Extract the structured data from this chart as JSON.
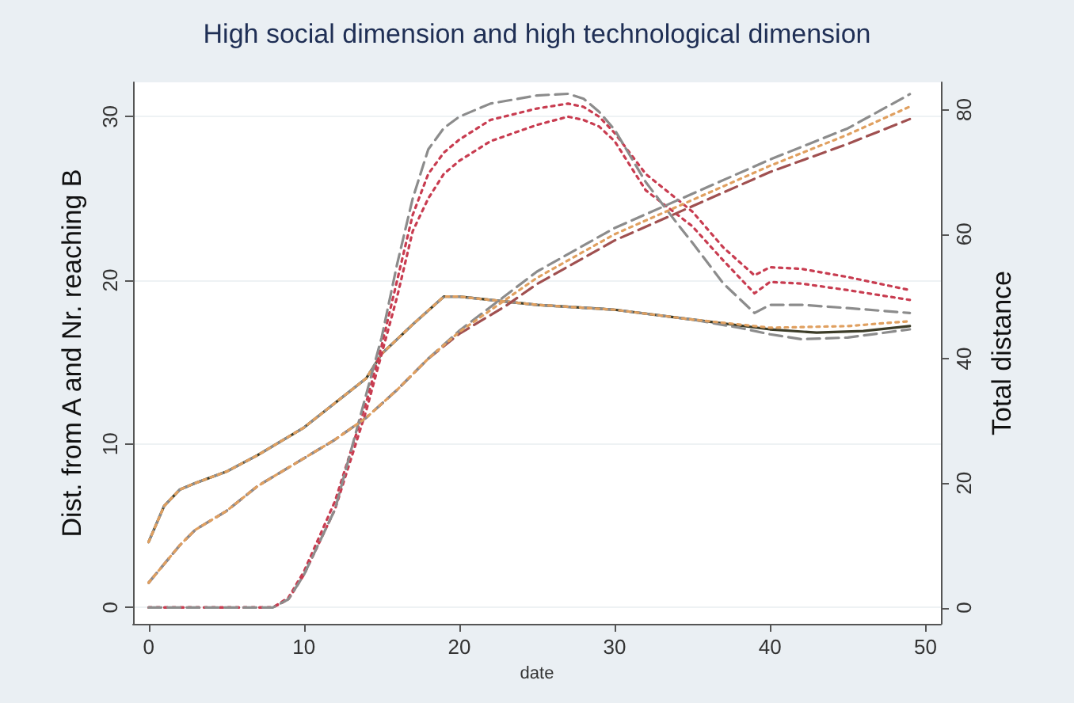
{
  "chart_data": {
    "type": "line",
    "title": "High social dimension and high technological dimension",
    "xlabel": "date",
    "ylabel": "Dist. from A and Nr. reaching B",
    "y2label": "Total distance",
    "xlim": [
      -1,
      51
    ],
    "xticks": [
      0,
      10,
      20,
      30,
      40,
      50
    ],
    "ylim": [
      -1,
      32.1
    ],
    "yticks": [
      0,
      10,
      20,
      30
    ],
    "y2lim": [
      -2.6,
      84.4
    ],
    "y2ticks": [
      0,
      20,
      40,
      60,
      80
    ],
    "grid": "y",
    "marker": "none",
    "series": [
      {
        "color": "#3c3c28",
        "line_style": "solid",
        "x": [
          0,
          1,
          2,
          3,
          5,
          7,
          10,
          12,
          14,
          15,
          17,
          19,
          20,
          25,
          30,
          35,
          40,
          43,
          46,
          49
        ],
        "values": [
          4,
          6.2,
          7.2,
          7.6,
          8.3,
          9.3,
          11,
          12.5,
          14,
          15.5,
          17.3,
          19,
          19,
          18.5,
          18.2,
          17.6,
          17,
          16.8,
          16.9,
          17.2
        ]
      },
      {
        "color": "#8c8c8c",
        "line_style": "dashed",
        "x": [
          0,
          1,
          2,
          3,
          5,
          7,
          10,
          12,
          14,
          15,
          17,
          19,
          20,
          25,
          30,
          35,
          38,
          40,
          42,
          45,
          49
        ],
        "values": [
          4,
          6.2,
          7.2,
          7.6,
          8.3,
          9.3,
          11,
          12.5,
          14,
          15.5,
          17.3,
          19,
          19,
          18.5,
          18.2,
          17.6,
          17.1,
          16.7,
          16.4,
          16.5,
          17
        ]
      },
      {
        "color": "#e0a060",
        "line_style": "dotted",
        "x": [
          0,
          1,
          2,
          3,
          5,
          7,
          10,
          12,
          14,
          15,
          17,
          19,
          20,
          25,
          30,
          35,
          40,
          45,
          49
        ],
        "values": [
          4,
          6.2,
          7.2,
          7.6,
          8.3,
          9.3,
          11,
          12.5,
          14,
          15.5,
          17.3,
          19,
          19,
          18.5,
          18.2,
          17.6,
          17.1,
          17.2,
          17.5
        ]
      },
      {
        "color": "#c83c50",
        "line_style": "dotted",
        "x": [
          0,
          8,
          9,
          10,
          12,
          14,
          15,
          16,
          17,
          18,
          19,
          20,
          22,
          25,
          27,
          28,
          29,
          30,
          32,
          35,
          37,
          39,
          40,
          42,
          45,
          49
        ],
        "values": [
          0,
          0,
          0.6,
          2.2,
          6.5,
          12.5,
          16,
          20,
          24,
          26.5,
          27.8,
          28.6,
          29.8,
          30.5,
          30.8,
          30.6,
          30,
          29,
          26.5,
          24.2,
          22,
          20.3,
          20.8,
          20.7,
          20.2,
          19.4
        ]
      },
      {
        "color": "#c83c50",
        "line_style": "dotted",
        "x": [
          0,
          8,
          9,
          10,
          12,
          14,
          15,
          16,
          17,
          18,
          19,
          20,
          22,
          25,
          27,
          28,
          29,
          30,
          32,
          35,
          37,
          39,
          40,
          42,
          45,
          49
        ],
        "values": [
          0,
          0,
          0.5,
          2,
          6,
          12,
          15.5,
          19,
          23,
          25,
          26.5,
          27.3,
          28.5,
          29.5,
          30,
          29.8,
          29.4,
          28.5,
          25.5,
          23.3,
          21.2,
          19.2,
          19.9,
          19.8,
          19.4,
          18.8
        ]
      },
      {
        "color": "#8c8c8c",
        "line_style": "dashed",
        "x": [
          0,
          8,
          9,
          10,
          12,
          14,
          15,
          16,
          17,
          18,
          19,
          20,
          22,
          25,
          27,
          28,
          29,
          30,
          32,
          34,
          35,
          37,
          39,
          40,
          42,
          45,
          49
        ],
        "values": [
          0,
          0,
          0.5,
          2,
          6,
          13,
          16.5,
          21,
          25,
          28,
          29.3,
          30,
          30.8,
          31.3,
          31.4,
          31.1,
          30.3,
          29.2,
          26,
          23.5,
          22.3,
          19.8,
          18,
          18.5,
          18.5,
          18.3,
          18
        ]
      },
      {
        "axis": "y2",
        "color": "#a05050",
        "line_style": "dashed",
        "x": [
          0,
          1,
          2,
          3,
          5,
          7,
          10,
          12,
          14,
          16,
          18,
          20,
          23,
          25,
          30,
          35,
          40,
          45,
          49
        ],
        "values": [
          4,
          7,
          10,
          12.5,
          15.5,
          19.5,
          24,
          27,
          30.5,
          35,
          40,
          44,
          48.5,
          52,
          59,
          64.5,
          70,
          74.5,
          78.5
        ]
      },
      {
        "axis": "y2",
        "color": "#8c8c8c",
        "line_style": "dashed",
        "x": [
          0,
          1,
          2,
          3,
          5,
          7,
          10,
          12,
          14,
          16,
          18,
          20,
          25,
          30,
          35,
          40,
          45,
          49
        ],
        "values": [
          4,
          7,
          10,
          12.5,
          15.5,
          19.5,
          24,
          27,
          30.5,
          35,
          40,
          44.5,
          54,
          61,
          66.5,
          72,
          77,
          82.5
        ]
      },
      {
        "axis": "y2",
        "color": "#e0a060",
        "line_style": "dotted",
        "x": [
          0,
          1,
          2,
          3,
          5,
          7,
          10,
          12,
          14,
          16,
          18,
          20,
          25,
          30,
          35,
          40,
          45,
          49
        ],
        "values": [
          4,
          7,
          10,
          12.5,
          15.5,
          19.5,
          24,
          27,
          30.5,
          35,
          40,
          44.3,
          53,
          60,
          65.5,
          71,
          76,
          80.5
        ]
      }
    ]
  }
}
